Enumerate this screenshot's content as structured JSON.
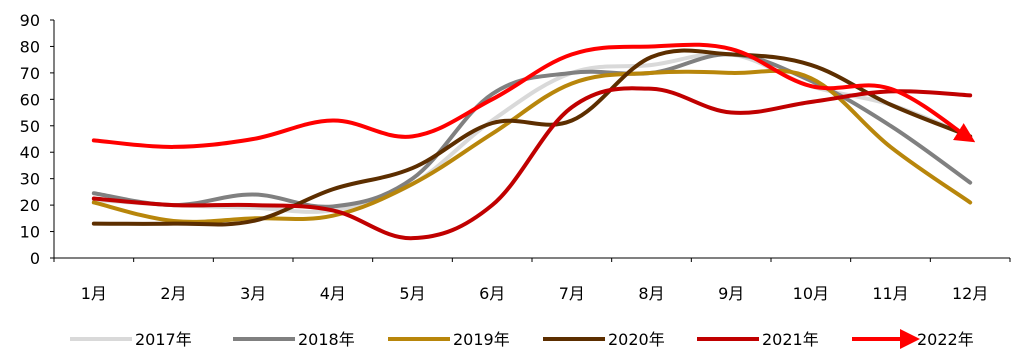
{
  "chart_data": {
    "type": "line",
    "title": "",
    "xlabel": "",
    "ylabel": "",
    "categories": [
      "1月",
      "2月",
      "3月",
      "4月",
      "5月",
      "6月",
      "7月",
      "8月",
      "9月",
      "10月",
      "11月",
      "12月"
    ],
    "ylim": [
      0,
      90
    ],
    "yticks": [
      0,
      10,
      20,
      30,
      40,
      50,
      60,
      70,
      80,
      90
    ],
    "grid": false,
    "legend_position": "bottom",
    "series": [
      {
        "name": "2017年",
        "color": "#d9d9d9",
        "marker": "none",
        "values": [
          22,
          20,
          19,
          18,
          28,
          52,
          70,
          73,
          77,
          65,
          58,
          46
        ]
      },
      {
        "name": "2018年",
        "color": "#808080",
        "marker": "none",
        "values": [
          24.5,
          20,
          24,
          19.5,
          30,
          62,
          70,
          70,
          77,
          67,
          50,
          28.5
        ]
      },
      {
        "name": "2019年",
        "color": "#b8860b",
        "marker": "none",
        "values": [
          21,
          14,
          15,
          16,
          28,
          47,
          66,
          70,
          70,
          68,
          42,
          21
        ]
      },
      {
        "name": "2020年",
        "color": "#5c2e00",
        "marker": "none",
        "values": [
          13,
          13,
          14,
          26,
          34,
          51,
          52,
          76,
          77,
          73,
          58,
          46
        ]
      },
      {
        "name": "2021年",
        "color": "#c00000",
        "marker": "none",
        "values": [
          22.5,
          20,
          20,
          18,
          7.5,
          20,
          57,
          64,
          55,
          59,
          63,
          61.5
        ]
      },
      {
        "name": "2022年",
        "color": "#ff0000",
        "marker": "arrow",
        "values": [
          44.5,
          42,
          45,
          52,
          46,
          60,
          77,
          80,
          79,
          65,
          64,
          45
        ]
      }
    ]
  }
}
